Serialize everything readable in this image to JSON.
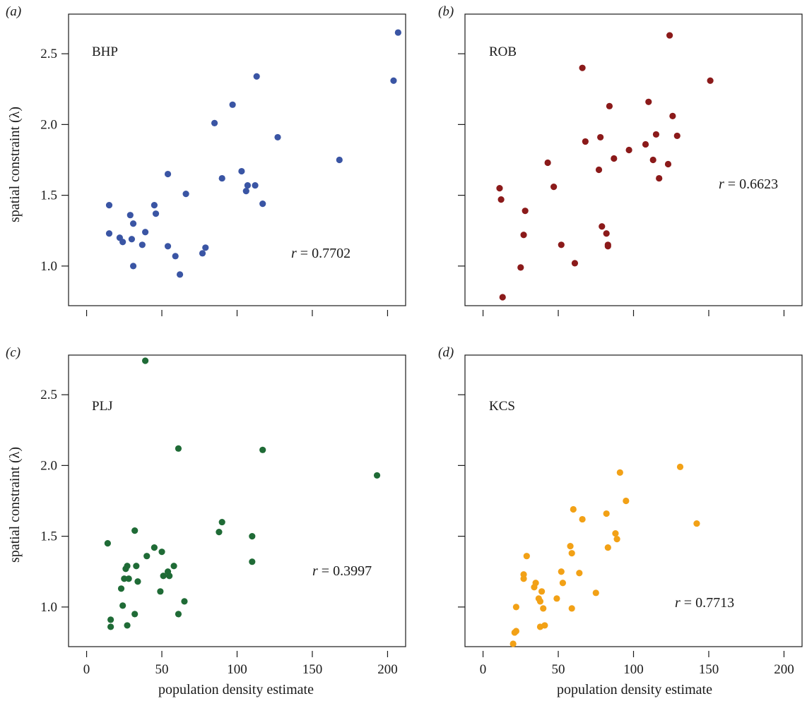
{
  "figure": {
    "ylabel": "spatial constraint  (λ)",
    "xlabel": "population density estimate"
  },
  "chart_data": [
    {
      "panel": "(a)",
      "title": "BHP",
      "type": "scatter",
      "r_symbol": "r",
      "r_value": " = 0.7702",
      "color": "#3a55a4",
      "xlim": [
        -12,
        212
      ],
      "ylim": [
        0.72,
        2.78
      ],
      "xticks": [
        0,
        50,
        100,
        150,
        200
      ],
      "yticks": [
        1.0,
        1.5,
        2.0,
        2.5
      ],
      "show_xtick_labels": false,
      "show_ytick_labels": true,
      "x": [
        15,
        15,
        22,
        24,
        29,
        30,
        31,
        31,
        37,
        39,
        45,
        46,
        54,
        54,
        59,
        62,
        66,
        77,
        79,
        85,
        90,
        97,
        103,
        106,
        107,
        112,
        113,
        117,
        127,
        168,
        204,
        207
      ],
      "y": [
        1.43,
        1.23,
        1.2,
        1.17,
        1.36,
        1.19,
        1.0,
        1.3,
        1.15,
        1.24,
        1.43,
        1.37,
        1.65,
        1.14,
        1.07,
        0.94,
        1.51,
        1.09,
        1.13,
        2.01,
        1.62,
        2.14,
        1.67,
        1.53,
        1.57,
        1.57,
        2.34,
        1.44,
        1.91,
        1.75,
        2.31,
        2.65
      ]
    },
    {
      "panel": "(b)",
      "title": "ROB",
      "type": "scatter",
      "r_symbol": "r",
      "r_value": " = 0.6623",
      "color": "#8b1a1a",
      "xlim": [
        -12,
        212
      ],
      "ylim": [
        0.72,
        2.78
      ],
      "xticks": [
        0,
        50,
        100,
        150,
        200
      ],
      "yticks": [
        1.0,
        1.5,
        2.0,
        2.5
      ],
      "show_xtick_labels": false,
      "show_ytick_labels": false,
      "x": [
        11,
        12,
        13,
        25,
        27,
        28,
        43,
        47,
        52,
        61,
        66,
        68,
        77,
        78,
        79,
        82,
        83,
        83,
        84,
        87,
        97,
        108,
        110,
        113,
        115,
        117,
        123,
        124,
        126,
        129,
        151
      ],
      "y": [
        1.55,
        1.47,
        0.78,
        0.99,
        1.22,
        1.39,
        1.73,
        1.56,
        1.15,
        1.02,
        2.4,
        1.88,
        1.68,
        1.91,
        1.28,
        1.23,
        1.14,
        1.15,
        2.13,
        1.76,
        1.82,
        1.86,
        2.16,
        1.75,
        1.93,
        1.62,
        1.72,
        2.63,
        2.06,
        1.92,
        2.31
      ]
    },
    {
      "panel": "(c)",
      "title": "PLJ",
      "type": "scatter",
      "r_symbol": "r",
      "r_value": " = 0.3997",
      "color": "#1f6b36",
      "xlim": [
        -12,
        212
      ],
      "ylim": [
        0.72,
        2.78
      ],
      "xticks": [
        0,
        50,
        100,
        150,
        200
      ],
      "yticks": [
        1.0,
        1.5,
        2.0,
        2.5
      ],
      "show_xtick_labels": true,
      "show_ytick_labels": true,
      "x": [
        14,
        16,
        16,
        23,
        24,
        25,
        26,
        27,
        27,
        28,
        32,
        32,
        33,
        34,
        39,
        40,
        45,
        49,
        50,
        51,
        54,
        55,
        58,
        61,
        61,
        65,
        88,
        90,
        110,
        110,
        117,
        193
      ],
      "y": [
        1.45,
        0.91,
        0.86,
        1.13,
        1.01,
        1.2,
        1.27,
        1.29,
        0.87,
        1.2,
        1.54,
        0.95,
        1.29,
        1.18,
        2.74,
        1.36,
        1.42,
        1.11,
        1.39,
        1.22,
        1.25,
        1.22,
        1.29,
        0.95,
        2.12,
        1.04,
        1.53,
        1.6,
        1.32,
        1.5,
        2.11,
        1.93
      ]
    },
    {
      "panel": "(d)",
      "title": "KCS",
      "type": "scatter",
      "r_symbol": "r",
      "r_value": " = 0.7713",
      "color": "#f2a116",
      "xlim": [
        -12,
        212
      ],
      "ylim": [
        0.72,
        2.78
      ],
      "xticks": [
        0,
        50,
        100,
        150,
        200
      ],
      "yticks": [
        1.0,
        1.5,
        2.0,
        2.5
      ],
      "show_xtick_labels": true,
      "show_ytick_labels": false,
      "x": [
        20,
        21,
        22,
        22,
        27,
        27,
        29,
        34,
        35,
        37,
        38,
        38,
        39,
        40,
        41,
        49,
        52,
        53,
        58,
        59,
        59,
        60,
        64,
        66,
        75,
        82,
        83,
        88,
        89,
        91,
        95,
        131,
        142
      ],
      "y": [
        0.74,
        0.82,
        1.0,
        0.83,
        1.23,
        1.2,
        1.36,
        1.14,
        1.17,
        1.06,
        1.04,
        0.86,
        1.11,
        0.99,
        0.87,
        1.06,
        1.25,
        1.17,
        1.43,
        0.99,
        1.38,
        1.69,
        1.24,
        1.62,
        1.1,
        1.66,
        1.42,
        1.52,
        1.48,
        1.95,
        1.75,
        1.99,
        1.59
      ]
    }
  ]
}
